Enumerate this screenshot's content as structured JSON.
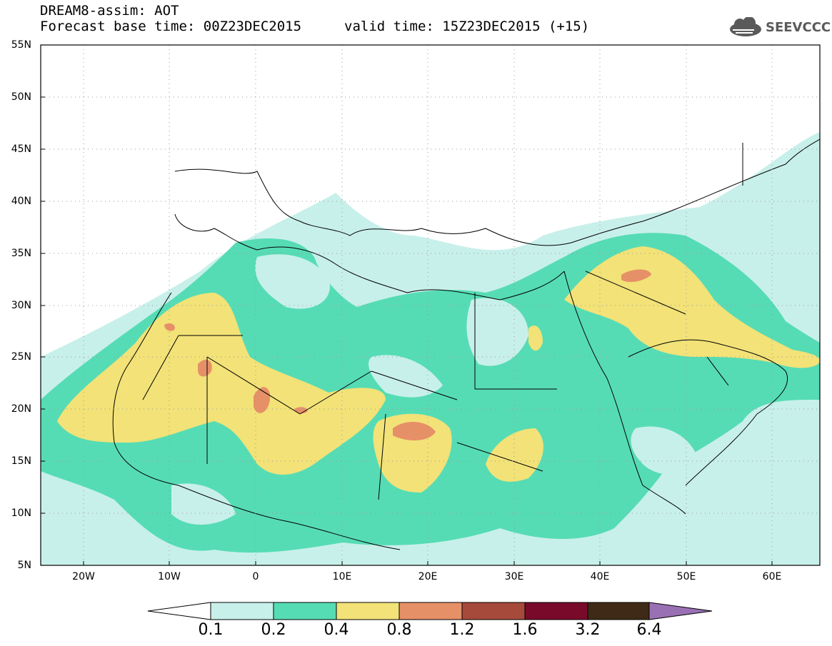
{
  "header": {
    "title": "DREAM8-assim: AOT",
    "forecast_base": "Forecast base time: 00Z23DEC2015",
    "valid_time": "valid time: 15Z23DEC2015 (+15)"
  },
  "logo": {
    "text": "SEEVCCC",
    "icon": "cloud-logo-icon"
  },
  "axes": {
    "lat_labels": [
      "55N",
      "50N",
      "45N",
      "40N",
      "35N",
      "30N",
      "25N",
      "20N",
      "15N",
      "10N",
      "5N"
    ],
    "lon_labels": [
      "20W",
      "10W",
      "0",
      "10E",
      "20E",
      "30E",
      "40E",
      "50E",
      "60E"
    ],
    "lat_range": [
      5,
      55
    ],
    "lon_range": [
      -25,
      65
    ],
    "grid": "dotted"
  },
  "legend": {
    "labels": [
      "0.1",
      "0.2",
      "0.4",
      "0.8",
      "1.2",
      "1.6",
      "3.2",
      "6.4"
    ],
    "colors": [
      "#ffffff",
      "#c8f0ea",
      "#56dcb4",
      "#f2e278",
      "#e69068",
      "#a64a3c",
      "#7a0a2a",
      "#3e2a16",
      "#9a70b4"
    ]
  },
  "colors": {
    "c1": "#c8f0ea",
    "c2": "#56dcb4",
    "c3": "#f2e278",
    "c4": "#e69068"
  }
}
